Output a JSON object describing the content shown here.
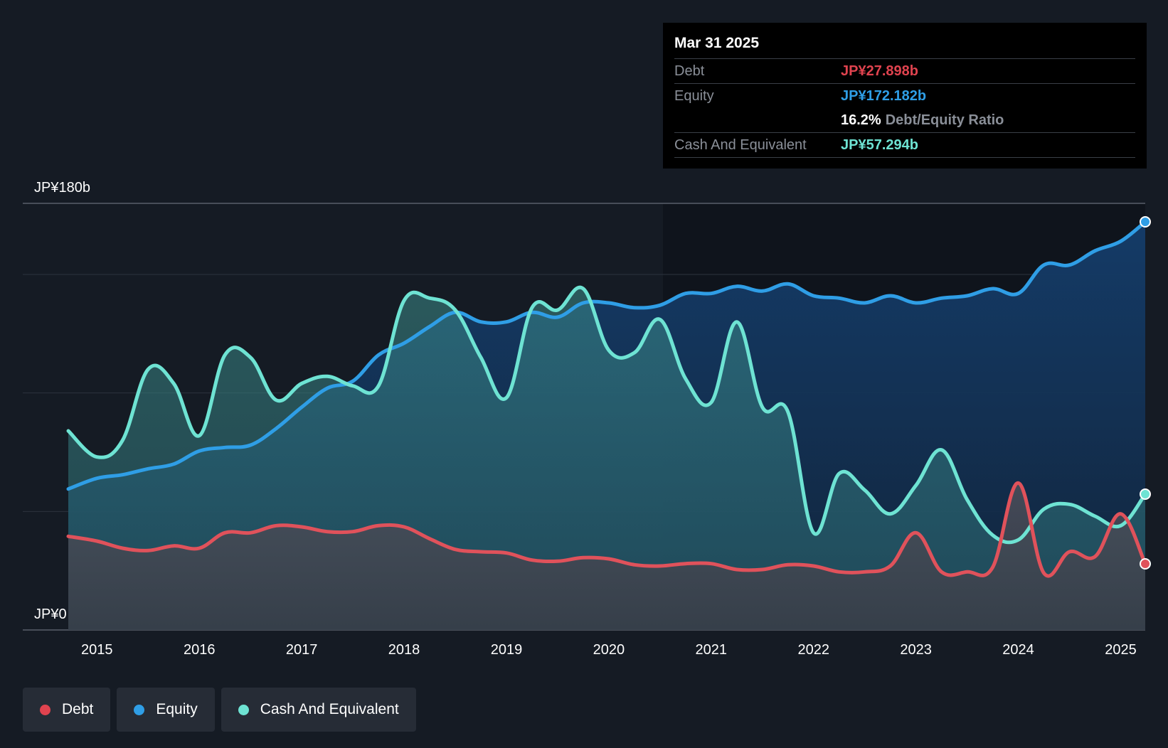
{
  "colors": {
    "debt": "#e0525b",
    "equity": "#2f9ee6",
    "cash": "#6ee3d3",
    "background": "#151b24"
  },
  "tooltip": {
    "date": "Mar 31 2025",
    "debt_label": "Debt",
    "debt_value": "JP¥27.898b",
    "equity_label": "Equity",
    "equity_value": "JP¥172.182b",
    "ratio_value": "16.2%",
    "ratio_label": "Debt/Equity Ratio",
    "cash_label": "Cash And Equivalent",
    "cash_value": "JP¥57.294b"
  },
  "legend": [
    {
      "key": "debt",
      "label": "Debt"
    },
    {
      "key": "equity",
      "label": "Equity"
    },
    {
      "key": "cash",
      "label": "Cash And Equivalent"
    }
  ],
  "chart_data": {
    "type": "area",
    "title": "",
    "ylim": [
      0,
      180
    ],
    "y_top_label": "JP¥180b",
    "y_bottom_label": "JP¥0",
    "x_tick_labels": [
      "2015",
      "2016",
      "2017",
      "2018",
      "2019",
      "2020",
      "2021",
      "2022",
      "2023",
      "2024",
      "2025"
    ],
    "x_tick_values": [
      2015,
      2016,
      2017,
      2018,
      2019,
      2020,
      2021,
      2022,
      2023,
      2024,
      2025
    ],
    "x_range": [
      2014.72,
      2025.24
    ],
    "grid_values": [
      50,
      100,
      150,
      180
    ],
    "series": [
      {
        "name": "Equity",
        "key": "equity",
        "points": [
          [
            2014.72,
            59.5
          ],
          [
            2015.0,
            64
          ],
          [
            2015.25,
            65.5
          ],
          [
            2015.5,
            68
          ],
          [
            2015.75,
            70
          ],
          [
            2016.0,
            75.5
          ],
          [
            2016.25,
            77
          ],
          [
            2016.5,
            78
          ],
          [
            2016.75,
            85
          ],
          [
            2017.0,
            94
          ],
          [
            2017.25,
            102
          ],
          [
            2017.5,
            105
          ],
          [
            2017.75,
            116
          ],
          [
            2018.0,
            121
          ],
          [
            2018.25,
            128
          ],
          [
            2018.5,
            134
          ],
          [
            2018.75,
            130
          ],
          [
            2019.0,
            130
          ],
          [
            2019.25,
            134
          ],
          [
            2019.5,
            132
          ],
          [
            2019.75,
            138
          ],
          [
            2020.0,
            138
          ],
          [
            2020.25,
            136
          ],
          [
            2020.5,
            137
          ],
          [
            2020.75,
            142
          ],
          [
            2021.0,
            142
          ],
          [
            2021.25,
            145
          ],
          [
            2021.5,
            143
          ],
          [
            2021.75,
            146
          ],
          [
            2022.0,
            141
          ],
          [
            2022.25,
            140
          ],
          [
            2022.5,
            138
          ],
          [
            2022.75,
            141
          ],
          [
            2023.0,
            138
          ],
          [
            2023.25,
            140
          ],
          [
            2023.5,
            141
          ],
          [
            2023.75,
            144
          ],
          [
            2024.0,
            142
          ],
          [
            2024.25,
            154
          ],
          [
            2024.5,
            154
          ],
          [
            2024.75,
            160
          ],
          [
            2025.0,
            164
          ],
          [
            2025.24,
            172.2
          ]
        ]
      },
      {
        "name": "Cash And Equivalent",
        "key": "cash",
        "points": [
          [
            2014.72,
            84
          ],
          [
            2015.0,
            73
          ],
          [
            2015.25,
            80
          ],
          [
            2015.5,
            110
          ],
          [
            2015.75,
            104
          ],
          [
            2016.0,
            82
          ],
          [
            2016.25,
            116
          ],
          [
            2016.5,
            115
          ],
          [
            2016.75,
            97
          ],
          [
            2017.0,
            104
          ],
          [
            2017.25,
            107
          ],
          [
            2017.5,
            103
          ],
          [
            2017.75,
            103
          ],
          [
            2018.0,
            139
          ],
          [
            2018.25,
            140
          ],
          [
            2018.5,
            135
          ],
          [
            2018.75,
            115
          ],
          [
            2019.0,
            98
          ],
          [
            2019.25,
            136
          ],
          [
            2019.5,
            135
          ],
          [
            2019.75,
            144
          ],
          [
            2020.0,
            118
          ],
          [
            2020.25,
            117
          ],
          [
            2020.5,
            131
          ],
          [
            2020.75,
            106
          ],
          [
            2021.0,
            96
          ],
          [
            2021.25,
            130
          ],
          [
            2021.5,
            94
          ],
          [
            2021.75,
            92
          ],
          [
            2022.0,
            41
          ],
          [
            2022.25,
            66
          ],
          [
            2022.5,
            59
          ],
          [
            2022.75,
            49
          ],
          [
            2023.0,
            61
          ],
          [
            2023.25,
            76
          ],
          [
            2023.5,
            55
          ],
          [
            2023.75,
            40
          ],
          [
            2024.0,
            38
          ],
          [
            2024.25,
            51
          ],
          [
            2024.5,
            53
          ],
          [
            2024.75,
            48
          ],
          [
            2025.0,
            44
          ],
          [
            2025.24,
            57.3
          ]
        ]
      },
      {
        "name": "Debt",
        "key": "debt",
        "points": [
          [
            2014.72,
            39.5
          ],
          [
            2015.0,
            37.5
          ],
          [
            2015.25,
            34.5
          ],
          [
            2015.5,
            33.5
          ],
          [
            2015.75,
            35.5
          ],
          [
            2016.0,
            34.5
          ],
          [
            2016.25,
            41
          ],
          [
            2016.5,
            41
          ],
          [
            2016.75,
            44
          ],
          [
            2017.0,
            43.5
          ],
          [
            2017.25,
            41.5
          ],
          [
            2017.5,
            41.5
          ],
          [
            2017.75,
            44
          ],
          [
            2018.0,
            43.5
          ],
          [
            2018.25,
            38.5
          ],
          [
            2018.5,
            34
          ],
          [
            2018.75,
            33
          ],
          [
            2019.0,
            32.5
          ],
          [
            2019.25,
            29.5
          ],
          [
            2019.5,
            29
          ],
          [
            2019.75,
            30.5
          ],
          [
            2020.0,
            30
          ],
          [
            2020.25,
            27.5
          ],
          [
            2020.5,
            27
          ],
          [
            2020.75,
            28
          ],
          [
            2021.0,
            28
          ],
          [
            2021.25,
            25.5
          ],
          [
            2021.5,
            25.5
          ],
          [
            2021.75,
            27.5
          ],
          [
            2022.0,
            27
          ],
          [
            2022.25,
            24.5
          ],
          [
            2022.5,
            24.5
          ],
          [
            2022.75,
            27
          ],
          [
            2023.0,
            41
          ],
          [
            2023.25,
            24.5
          ],
          [
            2023.5,
            24.5
          ],
          [
            2023.75,
            26.5
          ],
          [
            2024.0,
            62
          ],
          [
            2024.25,
            24
          ],
          [
            2024.5,
            33
          ],
          [
            2024.75,
            31
          ],
          [
            2025.0,
            49
          ],
          [
            2025.24,
            27.9
          ]
        ]
      }
    ]
  }
}
